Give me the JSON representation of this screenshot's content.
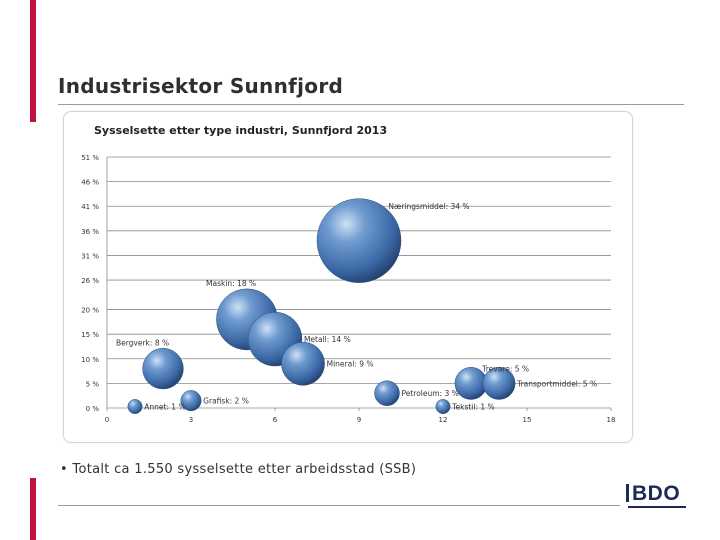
{
  "slide": {
    "title": "Industrisektor Sunnfjord",
    "bullet_marker": "•",
    "bullet": "Totalt ca 1.550 sysselsette etter arbeidsstad (SSB)",
    "logo_text": "BDO"
  },
  "chart_data": {
    "type": "scatter",
    "variant": "bubble",
    "title": "Sysselsette etter type industri, Sunnfjord 2013",
    "xlabel": "",
    "ylabel": "",
    "xlim": [
      0,
      18
    ],
    "ylim": [
      0,
      51
    ],
    "x_ticks": [
      "0",
      "3",
      "6",
      "9",
      "12",
      "15",
      "18"
    ],
    "x_tick_values": [
      0,
      3,
      6,
      9,
      12,
      15,
      18
    ],
    "y_ticks": [
      "0 %",
      "5 %",
      "10 %",
      "15 %",
      "20 %",
      "26 %",
      "31 %",
      "36 %",
      "41 %",
      "46 %",
      "51 %"
    ],
    "y_tick_values": [
      0,
      5,
      10,
      15,
      20,
      26,
      31,
      36,
      41,
      46,
      51
    ],
    "grid": "horizontal",
    "bubble_color": "#3e6fad",
    "points": [
      {
        "label": "Næringsmiddel: 34 %",
        "x": 9,
        "y": 34,
        "size": 34
      },
      {
        "label": "Maskin: 18 %",
        "x": 5,
        "y": 18,
        "size": 18
      },
      {
        "label": "Metall: 14 %",
        "x": 6,
        "y": 14,
        "size": 14
      },
      {
        "label": "Bergverk: 8 %",
        "x": 2,
        "y": 8,
        "size": 8
      },
      {
        "label": "Mineral: 9 %",
        "x": 7,
        "y": 9,
        "size": 9
      },
      {
        "label": "Trevare: 5 %",
        "x": 13,
        "y": 5,
        "size": 5
      },
      {
        "label": "Transportmiddel: 5 %",
        "x": 14,
        "y": 5,
        "size": 5
      },
      {
        "label": "Petroleum: 3 %",
        "x": 10,
        "y": 3,
        "size": 3
      },
      {
        "label": "Grafisk: 2 %",
        "x": 3,
        "y": 1.5,
        "size": 2
      },
      {
        "label": "Annet: 1 %",
        "x": 1,
        "y": 0.3,
        "size": 1
      },
      {
        "label": "Tekstil: 1 %",
        "x": 12,
        "y": 0.3,
        "size": 1
      }
    ]
  }
}
